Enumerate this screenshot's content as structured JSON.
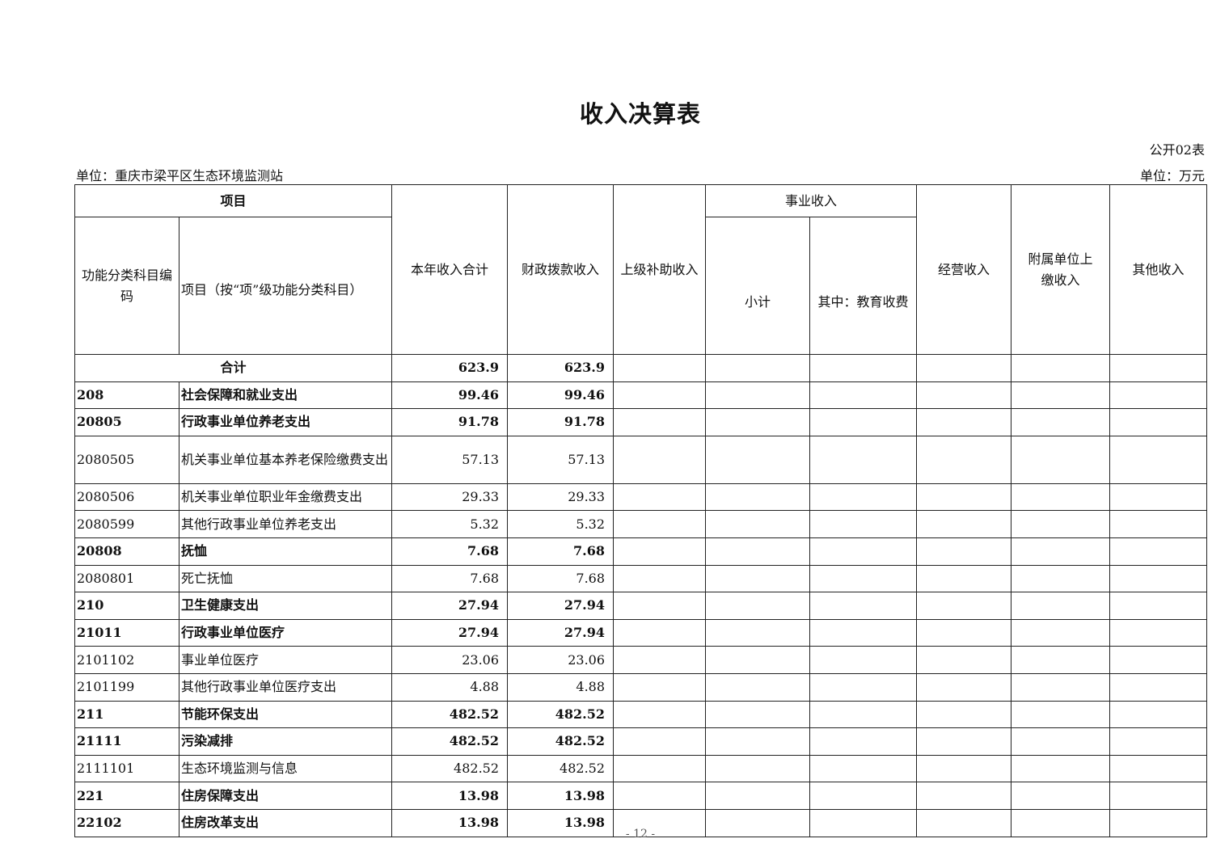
{
  "title": "收入决算表",
  "form_number": "公开02表",
  "unit_org": "单位：重庆市梁平区生态环境监测站",
  "unit_currency": "单位：万元",
  "headers": {
    "item": "项目",
    "code": "功能分类科目编码",
    "name": "项目（按“项”级功能分类科目）",
    "total": "本年收入合计",
    "fiscal": "财政拨款收入",
    "superior": "上级补助收入",
    "business": "事业收入",
    "subtotal": "小计",
    "education": "其中：教育收费",
    "operating": "经营收入",
    "affiliated": "附属单位上缴收入",
    "other": "其他收入"
  },
  "total_row": {
    "label": "合计",
    "total": "623.9",
    "fiscal": "623.9"
  },
  "rows": [
    {
      "code": "208",
      "name": "社会保障和就业支出",
      "total": "99.46",
      "fiscal": "99.46",
      "bold": true
    },
    {
      "code": "20805",
      "name": "行政事业单位养老支出",
      "total": "91.78",
      "fiscal": "91.78",
      "bold": true
    },
    {
      "code": "2080505",
      "name": "机关事业单位基本养老保险缴费支出",
      "total": "57.13",
      "fiscal": "57.13",
      "bold": false
    },
    {
      "code": "2080506",
      "name": "机关事业单位职业年金缴费支出",
      "total": "29.33",
      "fiscal": "29.33",
      "bold": false
    },
    {
      "code": "2080599",
      "name": "其他行政事业单位养老支出",
      "total": "5.32",
      "fiscal": "5.32",
      "bold": false
    },
    {
      "code": "20808",
      "name": "抚恤",
      "total": "7.68",
      "fiscal": "7.68",
      "bold": true
    },
    {
      "code": "2080801",
      "name": "死亡抚恤",
      "total": "7.68",
      "fiscal": "7.68",
      "bold": false
    },
    {
      "code": "210",
      "name": "卫生健康支出",
      "total": "27.94",
      "fiscal": "27.94",
      "bold": true
    },
    {
      "code": "21011",
      "name": "行政事业单位医疗",
      "total": "27.94",
      "fiscal": "27.94",
      "bold": true
    },
    {
      "code": "2101102",
      "name": "事业单位医疗",
      "total": "23.06",
      "fiscal": "23.06",
      "bold": false
    },
    {
      "code": "2101199",
      "name": "其他行政事业单位医疗支出",
      "total": "4.88",
      "fiscal": "4.88",
      "bold": false
    },
    {
      "code": "211",
      "name": "节能环保支出",
      "total": "482.52",
      "fiscal": "482.52",
      "bold": true
    },
    {
      "code": "21111",
      "name": "污染减排",
      "total": "482.52",
      "fiscal": "482.52",
      "bold": true
    },
    {
      "code": "2111101",
      "name": "生态环境监测与信息",
      "total": "482.52",
      "fiscal": "482.52",
      "bold": false
    },
    {
      "code": "221",
      "name": "住房保障支出",
      "total": "13.98",
      "fiscal": "13.98",
      "bold": true
    },
    {
      "code": "22102",
      "name": "住房改革支出",
      "total": "13.98",
      "fiscal": "13.98",
      "bold": true
    }
  ],
  "page_number": "- 12 -"
}
